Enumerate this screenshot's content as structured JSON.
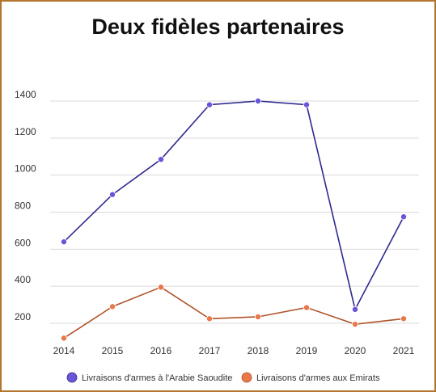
{
  "chart_data": {
    "type": "line",
    "title": "Deux fidèles partenaires",
    "xlabel": "",
    "ylabel": "",
    "categories": [
      "2014",
      "2015",
      "2016",
      "2017",
      "2018",
      "2019",
      "2020",
      "2021"
    ],
    "yticks": [
      "200",
      "400",
      "600",
      "800",
      "1000",
      "1200",
      "1400"
    ],
    "ylim": [
      100,
      1450
    ],
    "grid": true,
    "legend_position": "bottom",
    "series": [
      {
        "name": "Livraisons d'armes à l'Arabie Saoudite",
        "values": [
          640,
          895,
          1085,
          1380,
          1400,
          1380,
          275,
          775
        ],
        "line_color": "#2e2a8f",
        "marker_color": "#6a55d8"
      },
      {
        "name": "Livraisons d'armes aux Emirats",
        "values": [
          120,
          290,
          395,
          225,
          235,
          285,
          195,
          225
        ],
        "line_color": "#b0532a",
        "marker_color": "#e8774a"
      }
    ]
  }
}
